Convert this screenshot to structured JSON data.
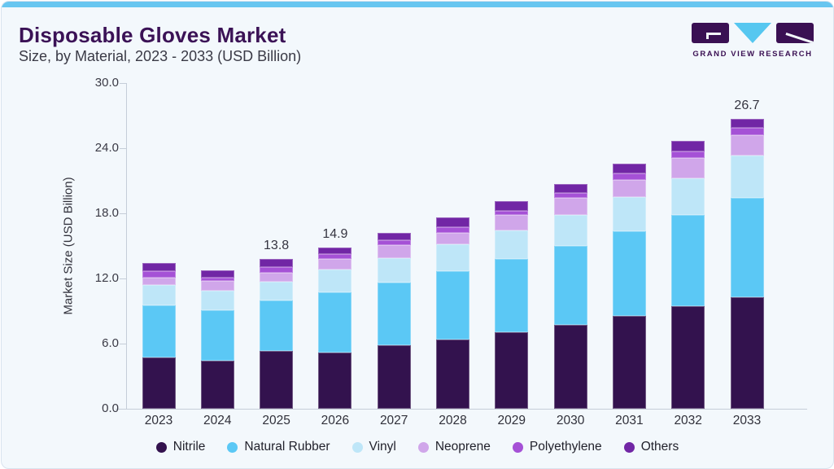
{
  "header": {
    "title": "Disposable Gloves Market",
    "subtitle": "Size, by Material, 2023 - 2033 (USD Billion)"
  },
  "logo": {
    "brand": "GRAND VIEW RESEARCH",
    "mark_icons": [
      "gvr-g-block-icon",
      "gvr-v-triangle-icon",
      "gvr-r-block-icon"
    ],
    "block_color": "#3A1053",
    "triangle_color": "#56C7F0"
  },
  "theme": {
    "accent_bar": "#68C6F0",
    "title_color": "#3B1256",
    "card_background": "#F3F8FC"
  },
  "chart_data": {
    "type": "bar",
    "stacked": true,
    "title": "Disposable Gloves Market Size, by Material, 2023 - 2033 (USD Billion)",
    "categories": [
      "2023",
      "2024",
      "2025",
      "2026",
      "2027",
      "2028",
      "2029",
      "2030",
      "2031",
      "2032",
      "2033"
    ],
    "series": [
      {
        "name": "Nitrile",
        "color": "#33124E",
        "values": [
          4.69,
          4.4,
          5.33,
          5.15,
          5.82,
          6.39,
          7.05,
          7.74,
          8.52,
          9.42,
          10.28
        ]
      },
      {
        "name": "Natural Rubber",
        "color": "#5BC8F5",
        "values": [
          4.83,
          4.69,
          4.62,
          5.61,
          5.82,
          6.32,
          6.75,
          7.29,
          7.86,
          8.4,
          9.14
        ]
      },
      {
        "name": "Vinyl",
        "color": "#BEE6F8",
        "values": [
          1.9,
          1.8,
          1.78,
          2.1,
          2.22,
          2.41,
          2.66,
          2.84,
          3.15,
          3.43,
          3.9
        ]
      },
      {
        "name": "Neoprene",
        "color": "#D0A6EA",
        "values": [
          0.66,
          0.88,
          0.82,
          0.92,
          1.19,
          1.1,
          1.42,
          1.53,
          1.54,
          1.83,
          1.85
        ]
      },
      {
        "name": "Polyethylene",
        "color": "#A551D6",
        "values": [
          0.59,
          0.31,
          0.5,
          0.5,
          0.48,
          0.48,
          0.36,
          0.48,
          0.59,
          0.59,
          0.7
        ]
      },
      {
        "name": "Others",
        "color": "#7126A5",
        "values": [
          0.76,
          0.64,
          0.78,
          0.57,
          0.66,
          0.94,
          0.87,
          0.83,
          0.94,
          0.99,
          0.83
        ]
      }
    ],
    "annotations": [
      {
        "category": "2025",
        "label": "13.8"
      },
      {
        "category": "2026",
        "label": "14.9"
      },
      {
        "category": "2033",
        "label": "26.7"
      }
    ],
    "xlabel": "",
    "ylabel": "Market Size (USD Billion)",
    "ylim": [
      0,
      30
    ],
    "ytick_labels": [
      "0.0",
      "6.0",
      "12.0",
      "18.0",
      "24.0",
      "30.0"
    ],
    "grid": false,
    "legend_position": "bottom"
  }
}
